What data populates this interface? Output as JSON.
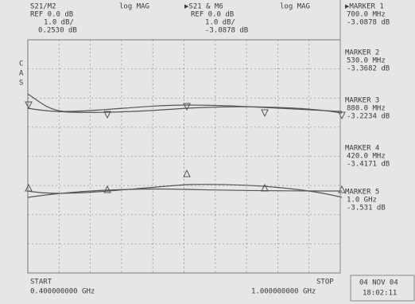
{
  "header": {
    "left": {
      "channel": "S21/M2",
      "format": "log MAG",
      "ref": "REF 0.0 dB",
      "scale": "1.0 dB/",
      "readout": "0.2530 dB"
    },
    "middle": {
      "channel": "▶S21 & M6",
      "format": "log MAG",
      "ref": "REF 0.0 dB",
      "scale": "1.0 dB/",
      "readout": "-3.0878 dB"
    }
  },
  "side_labels": [
    "C",
    "A",
    "S"
  ],
  "markers": [
    {
      "title": "▶MARKER 1",
      "freq": "700.0 MHz",
      "value": "-3.0878 dB"
    },
    {
      "title": "MARKER 2",
      "freq": "530.0 MHz",
      "value": "-3.3682 dB"
    },
    {
      "title": "MARKER 3",
      "freq": "880.0 MHz",
      "value": "-3.2234 dB"
    },
    {
      "title": "MARKER 4",
      "freq": "420.0 MHz",
      "value": "-3.4171 dB"
    },
    {
      "title": "MARKER 5",
      "freq": "1.0 GHz",
      "value": "-3.531 dB"
    }
  ],
  "footer": {
    "start_label": "START",
    "start": "0.400000000 GHz",
    "stop_label": "STOP",
    "stop": "1.000000000 GHz",
    "date": "04 NOV 04",
    "time": "18:02:11"
  }
}
